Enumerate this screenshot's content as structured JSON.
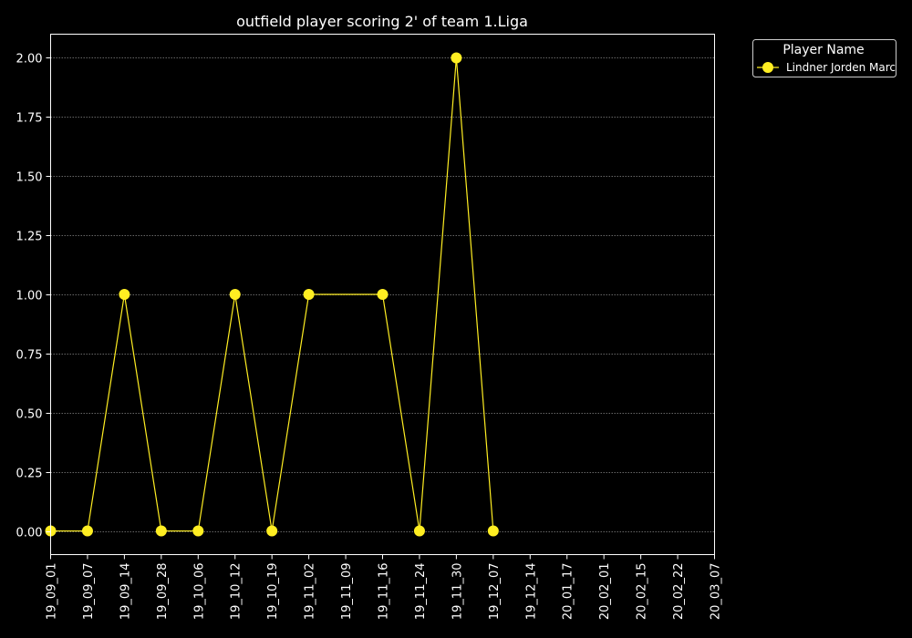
{
  "chart_data": {
    "type": "line",
    "title": "outfield player scoring 2' of team 1.Liga",
    "xlabel": "",
    "ylabel": "",
    "x_ticks": [
      "19_09_01",
      "19_09_07",
      "19_09_14",
      "19_09_28",
      "19_10_06",
      "19_10_12",
      "19_10_19",
      "19_11_02",
      "19_11_09",
      "19_11_16",
      "19_11_24",
      "19_11_30",
      "19_12_07",
      "19_12_14",
      "20_01_17",
      "20_02_01",
      "20_02_15",
      "20_02_22",
      "20_03_07"
    ],
    "y_ticks": [
      "0.00",
      "0.25",
      "0.50",
      "0.75",
      "1.00",
      "1.25",
      "1.50",
      "1.75",
      "2.00"
    ],
    "ylim": [
      -0.1,
      2.1
    ],
    "grid": true,
    "legend": {
      "title": "Player Name",
      "placement": "outside-top-right"
    },
    "series": [
      {
        "name": "Lindner Jorden Marc",
        "color": "#ffee22",
        "points": [
          {
            "x": "19_09_01",
            "y": 0
          },
          {
            "x": "19_09_07",
            "y": 0
          },
          {
            "x": "19_09_14",
            "y": 1
          },
          {
            "x": "19_09_28",
            "y": 0
          },
          {
            "x": "19_10_06",
            "y": 0
          },
          {
            "x": "19_10_12",
            "y": 1
          },
          {
            "x": "19_10_19",
            "y": 0
          },
          {
            "x": "19_11_02",
            "y": 1
          },
          {
            "x": "19_11_16",
            "y": 1
          },
          {
            "x": "19_11_24",
            "y": 0
          },
          {
            "x": "19_11_30",
            "y": 2
          },
          {
            "x": "19_12_07",
            "y": 0
          }
        ]
      }
    ]
  },
  "colors": {
    "background": "#000000",
    "axes": "#ffffff",
    "grid": "#888888"
  }
}
